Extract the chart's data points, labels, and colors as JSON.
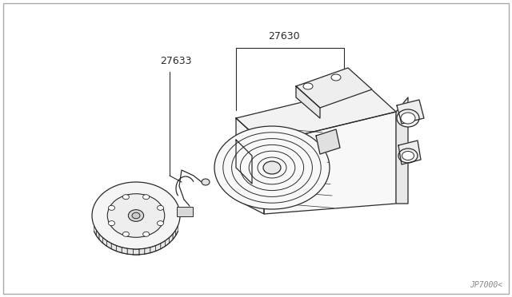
{
  "background_color": "#ffffff",
  "border_color": "#aaaaaa",
  "part_label_1": "27630",
  "part_label_2": "27633",
  "watermark": "JP7000<",
  "line_color": "#2a2a2a",
  "fig_width": 6.4,
  "fig_height": 3.72,
  "dpi": 100
}
